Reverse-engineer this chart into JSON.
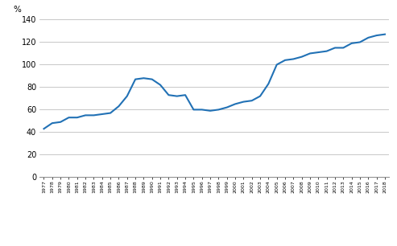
{
  "years": [
    1977,
    1978,
    1979,
    1980,
    1981,
    1982,
    1983,
    1984,
    1985,
    1986,
    1987,
    1988,
    1989,
    1990,
    1991,
    1992,
    1993,
    1994,
    1995,
    1996,
    1997,
    1998,
    1999,
    2000,
    2001,
    2002,
    2003,
    2004,
    2005,
    2006,
    2007,
    2008,
    2009,
    2010,
    2011,
    2012,
    2013,
    2014,
    2015,
    2016,
    2017,
    2018
  ],
  "values": [
    43,
    48,
    49,
    53,
    53,
    55,
    55,
    56,
    57,
    63,
    72,
    87,
    88,
    87,
    82,
    73,
    72,
    73,
    60,
    60,
    59,
    60,
    62,
    65,
    67,
    68,
    72,
    83,
    100,
    104,
    105,
    107,
    110,
    111,
    112,
    115,
    115,
    119,
    120,
    124,
    126,
    127
  ],
  "line_color": "#2171b5",
  "line_width": 1.5,
  "ylabel": "%",
  "ylim": [
    0,
    140
  ],
  "yticks": [
    0,
    20,
    40,
    60,
    80,
    100,
    120,
    140
  ],
  "background_color": "#ffffff",
  "grid_color": "#b0b0b0",
  "grid_linewidth": 0.5
}
